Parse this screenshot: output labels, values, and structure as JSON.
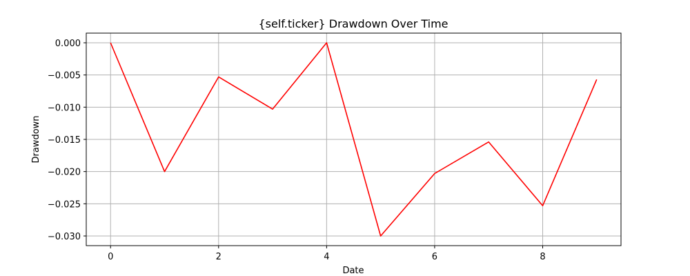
{
  "chart_data": {
    "type": "line",
    "title": "{self.ticker} Drawdown Over Time",
    "xlabel": "Date",
    "ylabel": "Drawdown",
    "x": [
      0,
      1,
      2,
      3,
      4,
      5,
      6,
      7,
      8,
      9
    ],
    "series": [
      {
        "values": [
          0.0,
          -0.02,
          -0.0053,
          -0.0103,
          0.0,
          -0.03,
          -0.0203,
          -0.0154,
          -0.0253,
          -0.0057
        ],
        "color": "#ff0000"
      }
    ],
    "xlim": [
      -0.45,
      9.45
    ],
    "ylim": [
      -0.0315,
      0.0015
    ],
    "xticks": [
      0,
      2,
      4,
      6,
      8
    ],
    "xtick_labels": [
      "0",
      "2",
      "4",
      "6",
      "8"
    ],
    "yticks": [
      0.0,
      -0.005,
      -0.01,
      -0.015,
      -0.02,
      -0.025,
      -0.03
    ],
    "ytick_labels": [
      "0.000",
      "−0.005",
      "−0.010",
      "−0.015",
      "−0.020",
      "−0.025",
      "−0.030"
    ],
    "grid": true,
    "legend": "none"
  }
}
